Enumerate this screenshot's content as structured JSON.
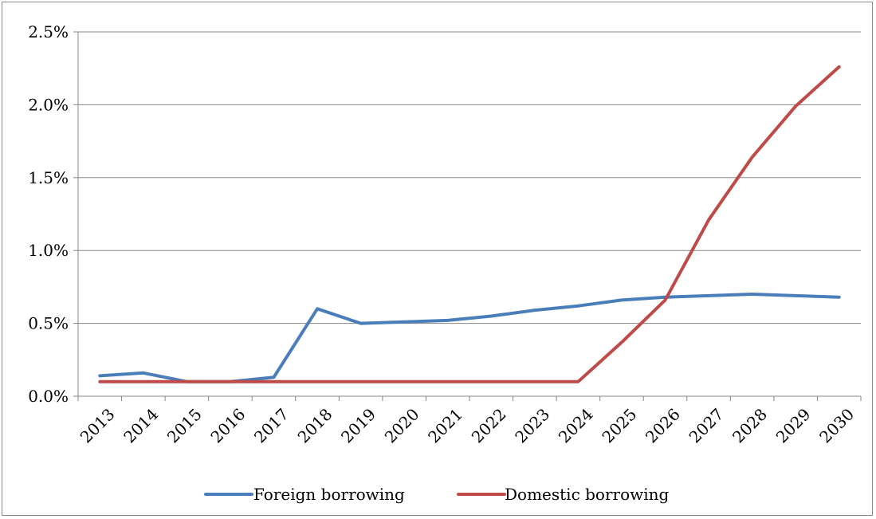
{
  "chart_data": {
    "type": "line",
    "title": "",
    "xlabel": "",
    "ylabel": "",
    "categories": [
      "2013",
      "2014",
      "2015",
      "2016",
      "2017",
      "2018",
      "2019",
      "2020",
      "2021",
      "2022",
      "2023",
      "2024",
      "2025",
      "2026",
      "2027",
      "2028",
      "2029",
      "2030"
    ],
    "y_ticks": [
      {
        "value": 0.0,
        "label": "0.0%"
      },
      {
        "value": 0.5,
        "label": "0.5%"
      },
      {
        "value": 1.0,
        "label": "1.0%"
      },
      {
        "value": 1.5,
        "label": "1.5%"
      },
      {
        "value": 2.0,
        "label": "2.0%"
      },
      {
        "value": 2.5,
        "label": "2.5%"
      }
    ],
    "ylim": [
      0,
      2.5
    ],
    "y_unit": "%",
    "grid": "horizontal",
    "legend_position": "bottom",
    "series": [
      {
        "name": "Foreign borrowing",
        "color": "#4a7ebb",
        "values": [
          0.14,
          0.16,
          0.1,
          0.1,
          0.13,
          0.6,
          0.5,
          0.51,
          0.52,
          0.55,
          0.59,
          0.62,
          0.66,
          0.68,
          0.69,
          0.7,
          0.69,
          0.68
        ]
      },
      {
        "name": "Domestic borrowing",
        "color": "#be4b48",
        "values": [
          0.1,
          0.1,
          0.1,
          0.1,
          0.1,
          0.1,
          0.1,
          0.1,
          0.1,
          0.1,
          0.1,
          0.1,
          0.37,
          0.66,
          1.21,
          1.64,
          1.99,
          2.26
        ]
      }
    ]
  }
}
